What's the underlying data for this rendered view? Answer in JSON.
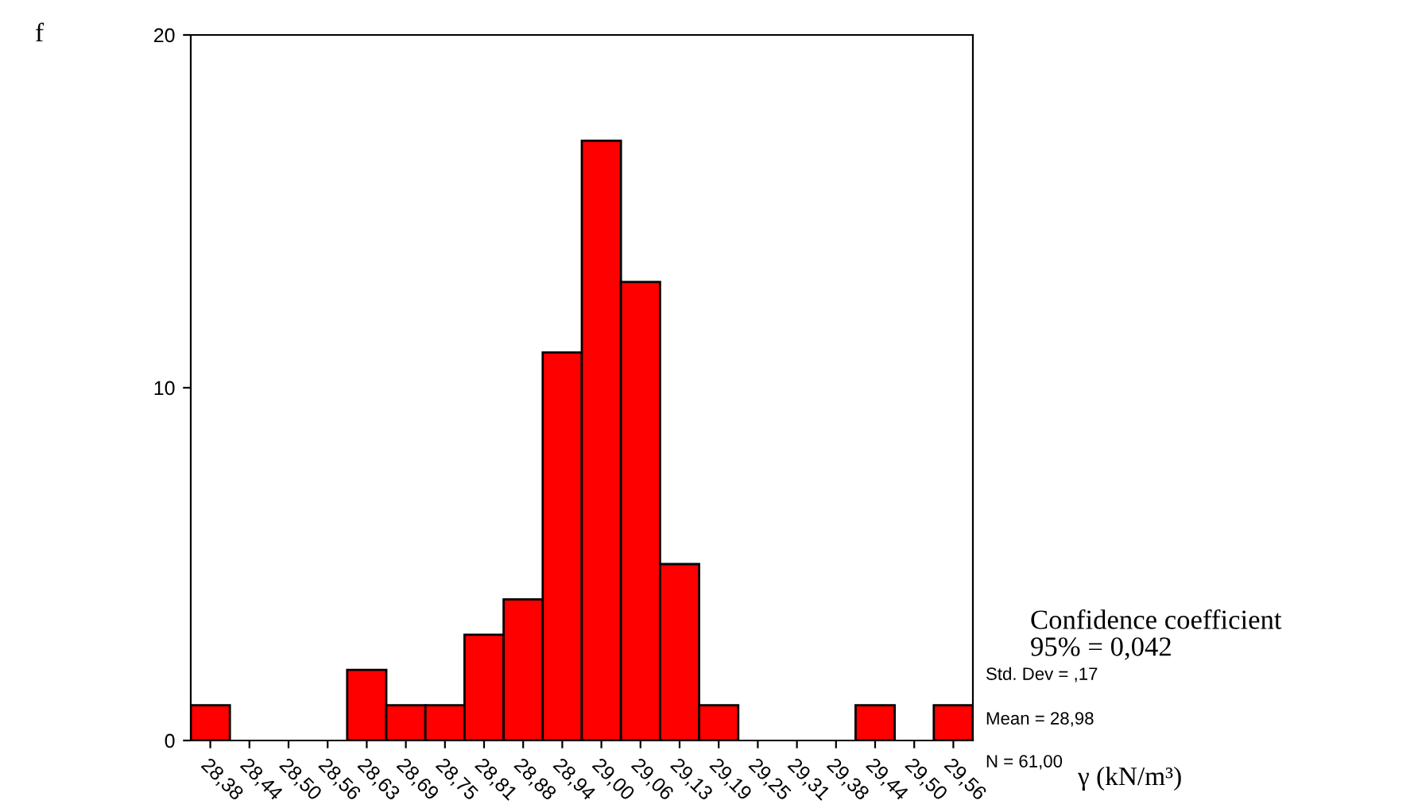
{
  "chart_data": {
    "type": "bar",
    "ylabel": "f",
    "xlabel": "γ (kN/m³)",
    "categories": [
      "28,38",
      "28,44",
      "28,50",
      "28,56",
      "28,63",
      "28,69",
      "28,75",
      "28,81",
      "28,88",
      "28,94",
      "29,00",
      "29,06",
      "29,13",
      "29,19",
      "29,25",
      "29,31",
      "29,38",
      "29,44",
      "29,50",
      "29,56"
    ],
    "values": [
      1,
      0,
      0,
      0,
      2,
      1,
      1,
      3,
      4,
      11,
      17,
      13,
      5,
      1,
      0,
      0,
      0,
      1,
      0,
      1
    ],
    "color": "#ff0000",
    "ylim": [
      0,
      20
    ],
    "yticks": [
      0,
      10,
      20
    ],
    "grid": false,
    "legend": false,
    "annotations": [
      "Std. Dev = ,17",
      "Mean = 28,98",
      "N = 61,00",
      "Confidence coefficient\n95% = 0,042"
    ]
  }
}
